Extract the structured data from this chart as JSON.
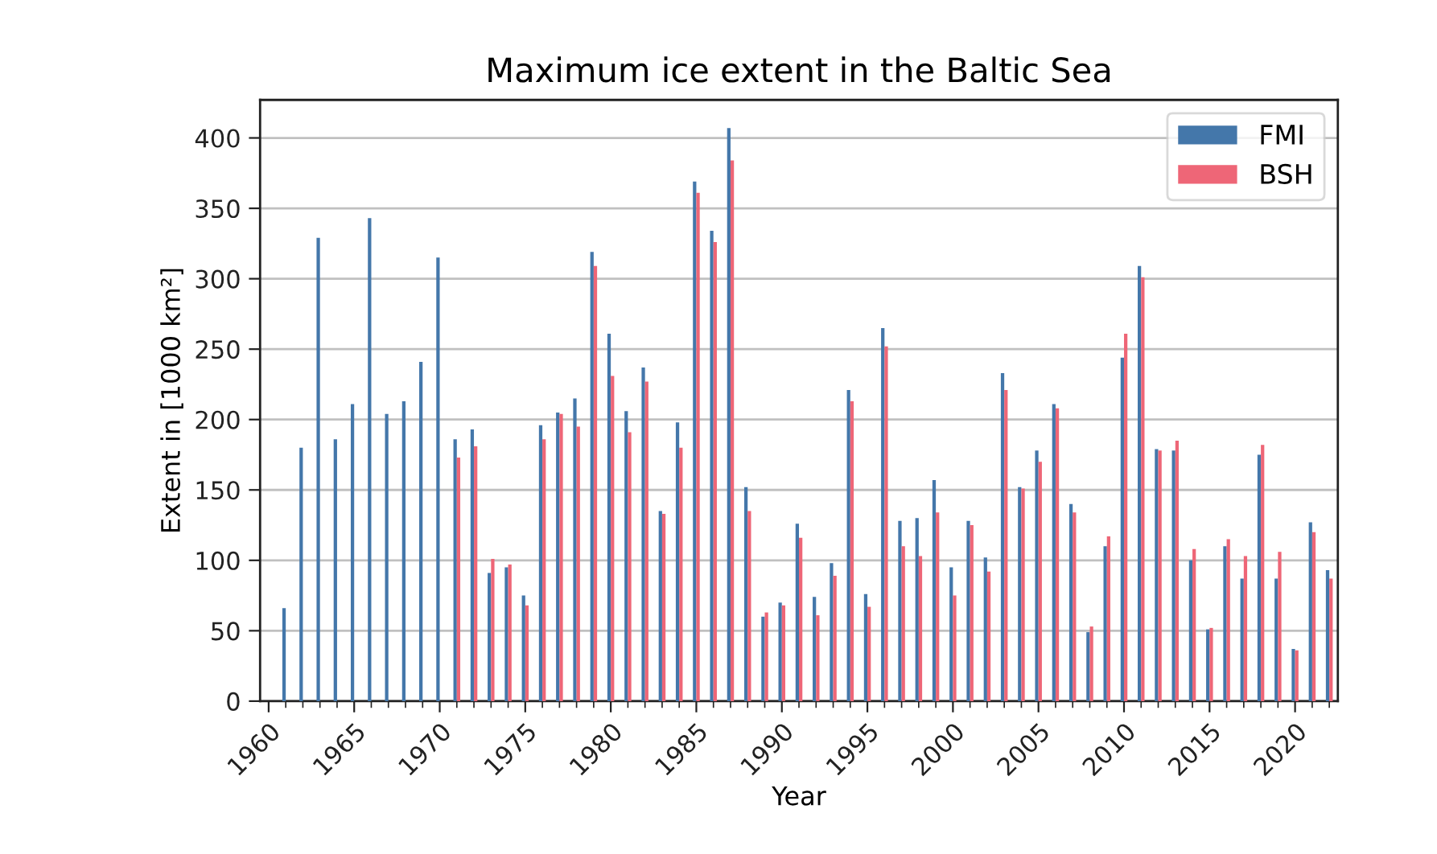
{
  "chart_data": {
    "type": "bar",
    "title": "Maximum ice extent in the Baltic Sea",
    "xlabel": "Year",
    "ylabel": "Extent in [1000 km²]",
    "x": [
      1961,
      1962,
      1963,
      1964,
      1965,
      1966,
      1967,
      1968,
      1969,
      1970,
      1971,
      1972,
      1973,
      1974,
      1975,
      1976,
      1977,
      1978,
      1979,
      1980,
      1981,
      1982,
      1983,
      1984,
      1985,
      1986,
      1987,
      1988,
      1989,
      1990,
      1991,
      1992,
      1993,
      1994,
      1995,
      1996,
      1997,
      1998,
      1999,
      2000,
      2001,
      2002,
      2003,
      2004,
      2005,
      2006,
      2007,
      2008,
      2009,
      2010,
      2011,
      2012,
      2013,
      2014,
      2015,
      2016,
      2017,
      2018,
      2019,
      2020,
      2021,
      2022
    ],
    "series": [
      {
        "name": "FMI",
        "color": "#4477aa",
        "values": [
          66,
          180,
          329,
          186,
          211,
          343,
          204,
          213,
          241,
          315,
          186,
          193,
          91,
          95,
          75,
          196,
          205,
          215,
          319,
          261,
          206,
          237,
          135,
          198,
          369,
          334,
          407,
          152,
          60,
          70,
          126,
          74,
          98,
          221,
          76,
          265,
          128,
          130,
          157,
          95,
          128,
          102,
          233,
          152,
          178,
          211,
          140,
          49,
          110,
          244,
          309,
          179,
          178,
          100,
          51,
          110,
          87,
          175,
          87,
          37,
          127,
          93
        ]
      },
      {
        "name": "BSH",
        "color": "#ee6677",
        "values": [
          null,
          null,
          null,
          null,
          null,
          null,
          null,
          null,
          null,
          null,
          173,
          181,
          101,
          97,
          68,
          186,
          204,
          195,
          309,
          231,
          191,
          227,
          133,
          180,
          361,
          326,
          384,
          135,
          63,
          68,
          116,
          61,
          89,
          213,
          67,
          252,
          110,
          103,
          134,
          75,
          125,
          92,
          221,
          151,
          170,
          208,
          134,
          53,
          117,
          261,
          301,
          178,
          185,
          108,
          52,
          115,
          103,
          182,
          106,
          36,
          120,
          87
        ]
      }
    ],
    "xlim": [
      1959.5,
      2022.5
    ],
    "xticks": [
      1960,
      {
        "value": 1961,
        "label": null
      },
      {
        "value": 1962,
        "label": null
      },
      {
        "value": 1963,
        "label": null
      },
      {
        "value": 1964,
        "label": null
      },
      1965,
      {
        "value": 1966,
        "label": null
      },
      {
        "value": 1967,
        "label": null
      },
      {
        "value": 1968,
        "label": null
      },
      {
        "value": 1969,
        "label": null
      },
      1970,
      {
        "value": 1971,
        "label": null
      },
      {
        "value": 1972,
        "label": null
      },
      {
        "value": 1973,
        "label": null
      },
      {
        "value": 1974,
        "label": null
      },
      1975,
      {
        "value": 1976,
        "label": null
      },
      {
        "value": 1977,
        "label": null
      },
      {
        "value": 1978,
        "label": null
      },
      {
        "value": 1979,
        "label": null
      },
      1980,
      {
        "value": 1981,
        "label": null
      },
      {
        "value": 1982,
        "label": null
      },
      {
        "value": 1983,
        "label": null
      },
      {
        "value": 1984,
        "label": null
      },
      1985,
      {
        "value": 1986,
        "label": null
      },
      {
        "value": 1987,
        "label": null
      },
      {
        "value": 1988,
        "label": null
      },
      {
        "value": 1989,
        "label": null
      },
      1990,
      {
        "value": 1991,
        "label": null
      },
      {
        "value": 1992,
        "label": null
      },
      {
        "value": 1993,
        "label": null
      },
      {
        "value": 1994,
        "label": null
      },
      1995,
      {
        "value": 1996,
        "label": null
      },
      {
        "value": 1997,
        "label": null
      },
      {
        "value": 1998,
        "label": null
      },
      {
        "value": 1999,
        "label": null
      },
      2000,
      {
        "value": 2001,
        "label": null
      },
      {
        "value": 2002,
        "label": null
      },
      {
        "value": 2003,
        "label": null
      },
      {
        "value": 2004,
        "label": null
      },
      2005,
      {
        "value": 2006,
        "label": null
      },
      {
        "value": 2007,
        "label": null
      },
      {
        "value": 2008,
        "label": null
      },
      {
        "value": 2009,
        "label": null
      },
      2010,
      {
        "value": 2011,
        "label": null
      },
      {
        "value": 2012,
        "label": null
      },
      {
        "value": 2013,
        "label": null
      },
      {
        "value": 2014,
        "label": null
      },
      2015,
      {
        "value": 2016,
        "label": null
      },
      {
        "value": 2017,
        "label": null
      },
      {
        "value": 2018,
        "label": null
      },
      {
        "value": 2019,
        "label": null
      },
      2020,
      {
        "value": 2021,
        "label": null
      },
      {
        "value": 2022,
        "label": null
      }
    ],
    "ylim": [
      0,
      427
    ],
    "yticks": [
      0,
      50,
      100,
      150,
      200,
      250,
      300,
      350,
      400
    ],
    "grid": "y",
    "legend": "top right"
  }
}
